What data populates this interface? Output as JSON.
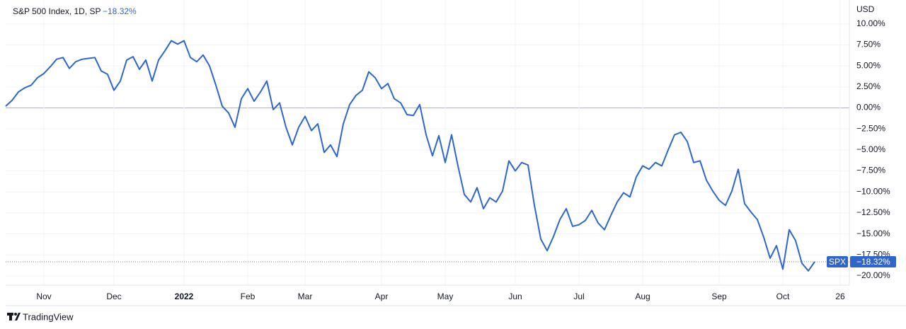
{
  "chart_data": {
    "type": "line",
    "title": "S&P 500 Index, 1D, SP",
    "last_label": "−18.32%",
    "symbol": "SPX",
    "currency": "USD",
    "branding": "TradingView",
    "categories": [
      null,
      null,
      null,
      null,
      null,
      null,
      "Nov",
      null,
      null,
      null,
      null,
      null,
      null,
      null,
      null,
      null,
      null,
      "Dec",
      null,
      null,
      null,
      null,
      null,
      null,
      null,
      null,
      null,
      null,
      "2022",
      null,
      null,
      null,
      null,
      null,
      null,
      null,
      null,
      null,
      "Feb",
      null,
      null,
      null,
      null,
      null,
      null,
      null,
      null,
      "Mar",
      null,
      null,
      null,
      null,
      null,
      null,
      null,
      null,
      null,
      null,
      null,
      "Apr",
      null,
      null,
      null,
      null,
      null,
      null,
      null,
      null,
      null,
      "May",
      null,
      null,
      null,
      null,
      null,
      null,
      null,
      null,
      null,
      null,
      "Jun",
      null,
      null,
      null,
      null,
      null,
      null,
      null,
      null,
      null,
      "Jul",
      null,
      null,
      null,
      null,
      null,
      null,
      null,
      null,
      null,
      "Aug",
      null,
      null,
      null,
      null,
      null,
      null,
      null,
      null,
      null,
      null,
      null,
      "Sep",
      null,
      null,
      null,
      null,
      null,
      null,
      null,
      null,
      null,
      "Oct",
      null,
      null,
      null,
      null,
      null,
      null,
      null,
      null,
      "26"
    ],
    "series": [
      {
        "name": "SPX",
        "color": "#2f66cc",
        "values": [
          0.2,
          0.9,
          1.9,
          2.4,
          2.7,
          3.6,
          4.1,
          4.9,
          5.8,
          6.0,
          4.7,
          5.5,
          5.8,
          5.9,
          6.0,
          4.4,
          4.0,
          2.1,
          3.2,
          5.7,
          6.1,
          4.6,
          5.7,
          3.2,
          5.7,
          6.8,
          8.0,
          7.6,
          8.0,
          6.0,
          5.5,
          6.3,
          5.0,
          2.7,
          0.2,
          -0.6,
          -2.3,
          1.1,
          2.3,
          0.8,
          1.9,
          3.2,
          -0.2,
          0.6,
          -2.3,
          -4.4,
          -2.3,
          -1.0,
          -2.7,
          -1.9,
          -5.3,
          -4.4,
          -5.8,
          -1.9,
          0.4,
          1.5,
          2.1,
          4.3,
          3.6,
          2.3,
          2.9,
          1.1,
          0.6,
          -0.8,
          -0.9,
          0.4,
          -3.2,
          -5.7,
          -3.3,
          -6.5,
          -3.2,
          -6.9,
          -10.3,
          -11.2,
          -9.5,
          -12.0,
          -10.7,
          -11.2,
          -9.9,
          -6.3,
          -7.5,
          -6.5,
          -6.8,
          -11.6,
          -15.6,
          -17.0,
          -15.3,
          -13.3,
          -12.0,
          -14.1,
          -13.9,
          -13.4,
          -12.2,
          -13.7,
          -14.5,
          -12.8,
          -11.2,
          -10.1,
          -10.6,
          -8.2,
          -6.9,
          -7.3,
          -6.5,
          -6.9,
          -5.0,
          -3.2,
          -2.9,
          -4.0,
          -6.5,
          -6.3,
          -8.6,
          -9.9,
          -11.0,
          -11.6,
          -9.9,
          -7.3,
          -11.4,
          -12.4,
          -13.3,
          -15.4,
          -17.9,
          -16.4,
          -19.2,
          -14.5,
          -15.8,
          -18.5,
          -19.4,
          -18.32,
          null,
          null,
          null,
          null
        ]
      }
    ],
    "ylim": [
      -21.1,
      12.85
    ],
    "yticks": [
      {
        "value": 10,
        "label": "10.00%"
      },
      {
        "value": 7.5,
        "label": "7.50%"
      },
      {
        "value": 5,
        "label": "5.00%"
      },
      {
        "value": 2.5,
        "label": "2.50%"
      },
      {
        "value": 0,
        "label": "0.00%"
      },
      {
        "value": -2.5,
        "label": "−2.50%"
      },
      {
        "value": -5,
        "label": "−5.00%"
      },
      {
        "value": -7.5,
        "label": "−7.50%"
      },
      {
        "value": -10,
        "label": "−10.00%"
      },
      {
        "value": -12.5,
        "label": "−12.50%"
      },
      {
        "value": -15,
        "label": "−15.00%"
      },
      {
        "value": -17.5,
        "label": "−17.50%"
      },
      {
        "value": -20,
        "label": "−20.00%"
      }
    ],
    "grid": true
  }
}
